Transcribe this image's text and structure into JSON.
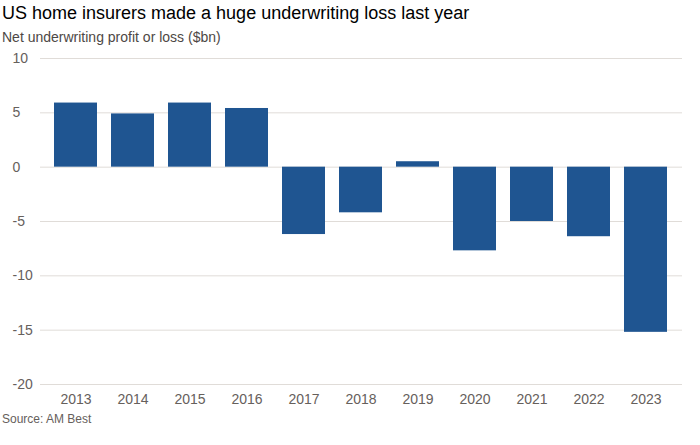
{
  "chart_data": {
    "type": "bar",
    "title": "US home insurers made a huge underwriting loss last year",
    "subtitle": "Net underwriting profit or loss ($bn)",
    "source": "Source: AM Best",
    "categories": [
      "2013",
      "2014",
      "2015",
      "2016",
      "2017",
      "2018",
      "2019",
      "2020",
      "2021",
      "2022",
      "2023"
    ],
    "values": [
      5.9,
      4.9,
      5.9,
      5.4,
      -6.2,
      -4.2,
      0.5,
      -7.7,
      -5.0,
      -6.4,
      -15.2
    ],
    "color": "#1f5591",
    "ylim": [
      -20,
      10
    ],
    "yticks": [
      -20,
      -15,
      -10,
      -5,
      0,
      5,
      10
    ],
    "grid": true
  }
}
